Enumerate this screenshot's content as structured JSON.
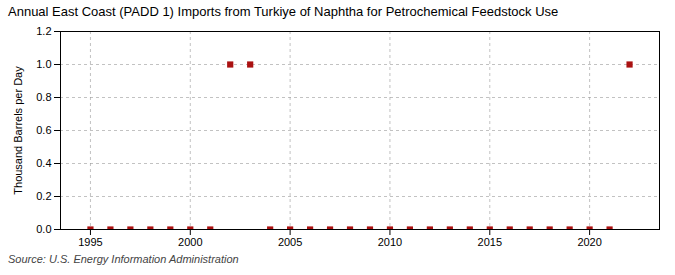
{
  "chart_data": {
    "type": "scatter",
    "title": "Annual East Coast (PADD 1) Imports from Turkiye of Naphtha for Petrochemical Feedstock Use",
    "ylabel": "Thousand Barrels per Day",
    "annotation": "Source: U.S. Energy Information Administration",
    "x": [
      1995,
      1996,
      1997,
      1998,
      1999,
      2000,
      2001,
      2002,
      2003,
      2004,
      2005,
      2006,
      2007,
      2008,
      2009,
      2010,
      2011,
      2012,
      2013,
      2014,
      2015,
      2016,
      2017,
      2018,
      2019,
      2020,
      2021,
      2022
    ],
    "values": [
      0.0,
      0.0,
      0.0,
      0.0,
      0.0,
      0.0,
      0.0,
      1.0,
      1.0,
      0.0,
      0.0,
      0.0,
      0.0,
      0.0,
      0.0,
      0.0,
      0.0,
      0.0,
      0.0,
      0.0,
      0.0,
      0.0,
      0.0,
      0.0,
      0.0,
      0.0,
      0.0,
      1.0
    ],
    "color": "#aa1111",
    "marker": "square",
    "xlim": [
      1993.5,
      2023.5
    ],
    "xticks": [
      1995,
      2000,
      2005,
      2010,
      2015,
      2020
    ],
    "ylim": [
      0.0,
      1.2
    ],
    "yticks": [
      {
        "value": 0,
        "label": "0.0"
      },
      0.2,
      0.4,
      0.6,
      0.8,
      {
        "value": 1,
        "label": "1.0"
      },
      1.2
    ],
    "grid": true
  }
}
